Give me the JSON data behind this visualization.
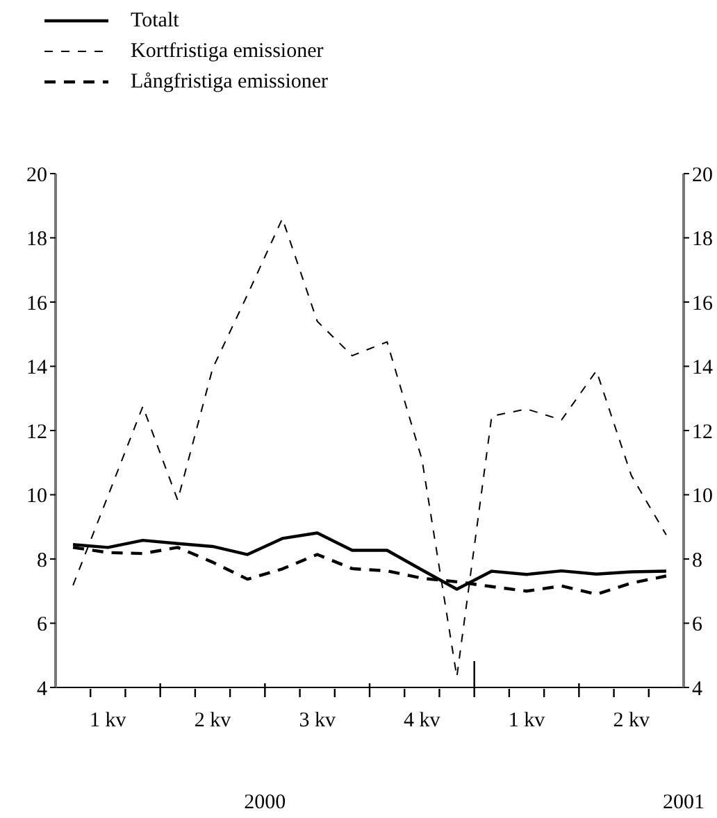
{
  "chart_data": {
    "type": "line",
    "categories": [
      null,
      "1 kv",
      null,
      null,
      "2 kv",
      null,
      null,
      "3 kv",
      null,
      null,
      "4 kv",
      null,
      null,
      "1 kv",
      null,
      null,
      "2 kv",
      null
    ],
    "series": [
      {
        "name": "Totalt",
        "color": "#000000",
        "line_style": "solid",
        "values": [
          8.45,
          8.36,
          8.58,
          8.48,
          8.39,
          8.14,
          8.64,
          8.81,
          8.27,
          8.27,
          7.66,
          7.06,
          7.62,
          7.52,
          7.63,
          7.53,
          7.6,
          7.62
        ]
      },
      {
        "name": "Kortfristiga emissioner",
        "color": "#000000",
        "line_style": "dashed",
        "values": [
          7.18,
          9.96,
          12.75,
          9.83,
          13.93,
          16.23,
          18.6,
          15.4,
          14.33,
          14.76,
          11.1,
          4.33,
          12.45,
          12.67,
          12.33,
          13.86,
          10.6,
          8.75
        ]
      },
      {
        "name": "Långfristiga emissioner",
        "color": "#000000",
        "line_style": "dashed",
        "values": [
          8.36,
          8.2,
          8.17,
          8.36,
          7.9,
          7.37,
          7.69,
          8.14,
          7.7,
          7.63,
          7.4,
          7.29,
          7.14,
          7.0,
          7.16,
          6.9,
          7.25,
          7.47
        ]
      }
    ],
    "ylim": [
      4,
      20
    ],
    "yticks": [
      4,
      6,
      8,
      10,
      12,
      14,
      16,
      18,
      20
    ],
    "y2lim": [
      4,
      20
    ],
    "y2ticks": [
      4,
      6,
      8,
      10,
      12,
      14,
      16,
      18,
      20
    ],
    "annotations": [
      "2000",
      "2001"
    ],
    "legend": "top left",
    "marker": "none"
  }
}
